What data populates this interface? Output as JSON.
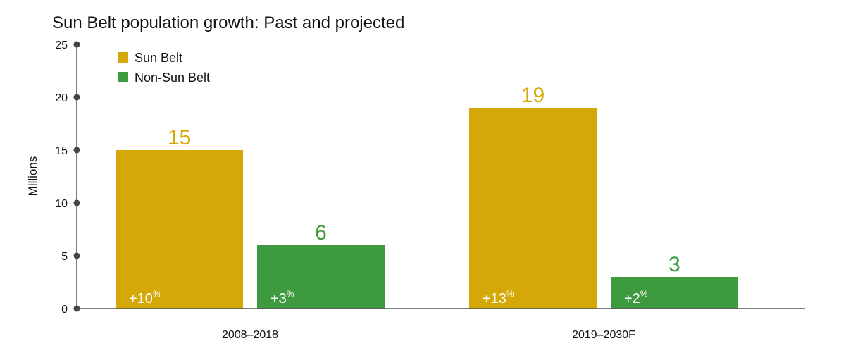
{
  "chart_data": {
    "type": "bar",
    "title": "Sun Belt population growth: Past and projected",
    "ylabel": "Millions",
    "xlabel": "",
    "ylim": [
      0,
      25
    ],
    "yticks": [
      0,
      5,
      10,
      15,
      20,
      25
    ],
    "categories": [
      "2008–2018",
      "2019–2030F"
    ],
    "grid": false,
    "legend_position": "top-left",
    "series": [
      {
        "name": "Sun Belt",
        "color": "#D4A806",
        "values": [
          15,
          19
        ],
        "labels": [
          "15",
          "19"
        ],
        "growth": [
          {
            "value": "+10",
            "unit": "%"
          },
          {
            "value": "+13",
            "unit": "%"
          }
        ]
      },
      {
        "name": "Non-Sun Belt",
        "color": "#3E9A3E",
        "values": [
          6,
          3
        ],
        "labels": [
          "6",
          "3"
        ],
        "growth": [
          {
            "value": "+3",
            "unit": "%"
          },
          {
            "value": "+2",
            "unit": "%"
          }
        ]
      }
    ]
  }
}
